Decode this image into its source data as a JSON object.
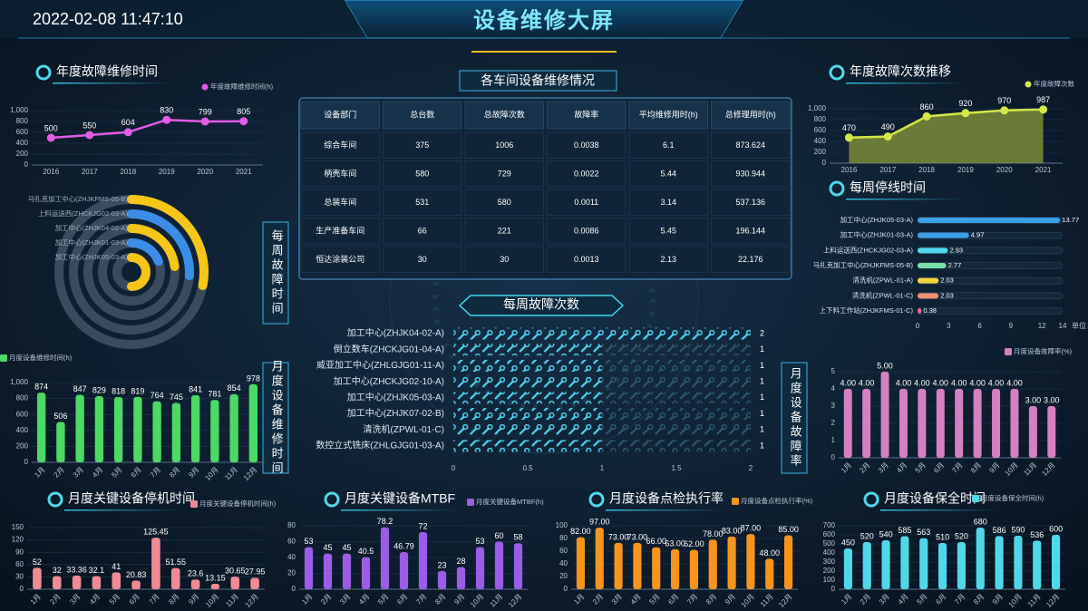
{
  "header": {
    "datetime": "2022-02-08 11:47:10",
    "title": "设备维修大屏"
  },
  "table": {
    "title": "各车间设备维修情况",
    "columns": [
      "设备部门",
      "总台数",
      "总故障次数",
      "故障率",
      "平均维修用时(h)",
      "总修理用时(h)"
    ],
    "rows": [
      [
        "综合车间",
        375,
        1006,
        0.0038,
        6.1,
        873.624
      ],
      [
        "柄壳车间",
        580,
        729,
        0.0022,
        5.44,
        930.944
      ],
      [
        "总装车间",
        531,
        580,
        0.0011,
        3.14,
        537.136
      ],
      [
        "生产准备车间",
        66,
        221,
        0.0086,
        5.45,
        196.144
      ],
      [
        "恒达涂装公司",
        30,
        30,
        0.0013,
        2.13,
        22.176
      ]
    ]
  },
  "chart_data": [
    {
      "type": "line",
      "title": "年度故障维修时间",
      "categories": [
        "2016",
        "2017",
        "2018",
        "2019",
        "2020",
        "2021"
      ],
      "series": [
        {
          "name": "年度故障维修时间(h)",
          "color": "#e45be8",
          "values": [
            500,
            550,
            604,
            830,
            799,
            805
          ]
        }
      ],
      "ylim": [
        0,
        1000
      ],
      "yticks": [
        0,
        200,
        400,
        600,
        800,
        {
          "value": 1000,
          "label": "1,000"
        }
      ]
    },
    {
      "type": "area",
      "title": "年度故障次数推移",
      "categories": [
        "2016",
        "2017",
        "2018",
        "2019",
        "2020",
        "2021"
      ],
      "series": [
        {
          "name": "年度故障次数",
          "color": "#d4e84a",
          "values": [
            470,
            490,
            860,
            920,
            970,
            987
          ]
        }
      ],
      "ylim": [
        0,
        1000
      ],
      "yticks": [
        0,
        200,
        400,
        600,
        800,
        {
          "value": 1000,
          "label": "1,000"
        }
      ]
    },
    {
      "type": "hbar",
      "title": "每周停线时间",
      "categories": [
        "加工中心(ZHJK05-03-A)",
        "加工中心(ZHJK01-03-A)",
        "上料运送西(ZHCKJG02-03-A)",
        "马扎克加工中心(ZHJKFMS-05-B)",
        "清洗机(ZPWL-01-A)",
        "清洗机(ZPWL-01-C)",
        "上下料工作站(ZHJKFMS-01-C)"
      ],
      "values": [
        13.77,
        4.97,
        2.93,
        2.77,
        2.03,
        2.03,
        0.38
      ],
      "colors": [
        "#3aa0e8",
        "#3aa0e8",
        "#4fd8ea",
        "#7be0a8",
        "#f5d33f",
        "#f09070",
        "#f06a9a"
      ],
      "xlim": [
        0,
        14
      ],
      "xticks": [
        0,
        3,
        6,
        9,
        12,
        14
      ],
      "unit_label": "单位"
    },
    {
      "type": "polar",
      "title": "每周故障时间",
      "categories": [
        "马扎克加工中心(ZHJKFMS-05-B)",
        "上料运送西(ZHCKJG02-03-A)",
        "加工中心(ZHJK04-02-A)",
        "加工中心(ZHJK01-03-A)",
        "加工中心(ZHJK05-03-A)"
      ],
      "values": [
        2.8,
        2.6,
        2.3,
        1.9,
        5
      ],
      "colors": [
        "#f5c518",
        "#3a8ee6",
        "#f5c518",
        "#3a8ee6",
        "#f5c518"
      ],
      "rlim": [
        0,
        10
      ]
    },
    {
      "type": "bar",
      "title": "月度设备维修时间",
      "categories": [
        "1月",
        "2月",
        "3月",
        "4月",
        "5月",
        "6月",
        "7月",
        "8月",
        "9月",
        "10月",
        "11月",
        "12月"
      ],
      "series": [
        {
          "name": "月度设备维修时间(h)",
          "color": "#4cd964",
          "values": [
            874,
            506,
            847,
            829,
            818,
            819,
            764,
            745,
            841,
            781,
            854,
            978
          ]
        }
      ],
      "ylim": [
        0,
        1000
      ],
      "yticks": [
        0,
        200,
        400,
        600,
        800,
        {
          "value": 1000,
          "label": "1,000"
        }
      ]
    },
    {
      "type": "pictorial",
      "title": "每周故障次数",
      "categories": [
        "加工中心(ZHJK04-02-A)",
        "倒立数车(ZHCKJG01-04-A)",
        "威亚加工中心(ZHLGJG01-11-A)",
        "加工中心(ZHCKJG02-10-A)",
        "加工中心(ZHJK05-03-A)",
        "加工中心(ZHJK07-02-B)",
        "清洗机(ZPWL-01-C)",
        "数控立式铣床(ZHLGJG01-03-A)"
      ],
      "values": [
        2,
        1,
        1,
        1,
        1,
        1,
        1,
        1
      ],
      "color": "#4dd2f0",
      "xlim": [
        0,
        2
      ],
      "xticks": [
        0,
        0.5,
        1,
        1.5,
        2
      ]
    },
    {
      "type": "bar",
      "title": "月度设备故障率",
      "categories": [
        "1月",
        "2月",
        "3月",
        "4月",
        "5月",
        "6月",
        "7月",
        "8月",
        "9月",
        "10月",
        "11月",
        "12月"
      ],
      "series": [
        {
          "name": "月度设备故障率(%)",
          "color": "#d77fc3",
          "values": [
            4,
            4,
            5,
            4,
            4,
            4,
            4,
            4,
            4,
            4,
            3,
            3
          ],
          "value_labels": [
            "4.00",
            "4.00",
            "5.00",
            "4.00",
            "4.00",
            "4.00",
            "4.00",
            "4.00",
            "4.00",
            "4.00",
            "3.00",
            "3.00"
          ]
        }
      ],
      "ylim": [
        0,
        5
      ],
      "yticks": [
        0,
        1,
        2,
        3,
        4,
        5
      ]
    },
    {
      "type": "bar",
      "title": "月度关键设备停机时间",
      "categories": [
        "1月",
        "2月",
        "3月",
        "4月",
        "5月",
        "6月",
        "7月",
        "8月",
        "9月",
        "10月",
        "11月",
        "12月"
      ],
      "series": [
        {
          "name": "月度关键设备停机时间(h)",
          "color": "#f08a94",
          "values": [
            52,
            32,
            33.36,
            32.1,
            41,
            20.83,
            125.45,
            51.55,
            23.6,
            13.15,
            30.65,
            27.95
          ]
        }
      ],
      "ylim": [
        0,
        150
      ],
      "yticks": [
        0,
        30,
        60,
        90,
        120,
        150
      ]
    },
    {
      "type": "bar",
      "title": "月度关键设备MTBF",
      "categories": [
        "1月",
        "2月",
        "3月",
        "4月",
        "5月",
        "6月",
        "7月",
        "8月",
        "9月",
        "10月",
        "11月",
        "12月"
      ],
      "series": [
        {
          "name": "月度关键设备MTBF(h)",
          "color": "#9b5de5",
          "values": [
            53,
            45,
            45,
            40.5,
            78.2,
            46.79,
            72,
            23,
            28,
            53,
            60,
            58
          ]
        }
      ],
      "ylim": [
        0,
        80
      ],
      "yticks": [
        0,
        20,
        40,
        60,
        80
      ]
    },
    {
      "type": "bar",
      "title": "月度设备点检执行率",
      "categories": [
        "1月",
        "2月",
        "3月",
        "4月",
        "5月",
        "6月",
        "7月",
        "8月",
        "9月",
        "10月",
        "11月",
        "12月"
      ],
      "series": [
        {
          "name": "月度设备点检执行率(%)",
          "color": "#f7941d",
          "values": [
            82,
            97,
            73,
            73,
            66,
            63,
            62,
            78,
            83,
            87,
            48,
            85
          ],
          "value_labels": [
            "82.00",
            "97.00",
            "73.00",
            "73.00",
            "66.00",
            "63.00",
            "62.00",
            "78.00",
            "83.00",
            "87.00",
            "48.00",
            "85.00"
          ]
        }
      ],
      "ylim": [
        0,
        100
      ],
      "yticks": [
        0,
        20,
        40,
        60,
        80,
        100
      ]
    },
    {
      "type": "bar",
      "title": "月度设备保全时间",
      "categories": [
        "1月",
        "2月",
        "3月",
        "4月",
        "5月",
        "6月",
        "7月",
        "8月",
        "9月",
        "10月",
        "11月",
        "12月"
      ],
      "series": [
        {
          "name": "月度设备保全时间(h)",
          "color": "#4fd8ea",
          "values": [
            450,
            520,
            540,
            585,
            563,
            510,
            520,
            680,
            586,
            590,
            536,
            600
          ]
        }
      ],
      "ylim": [
        0,
        700
      ],
      "yticks": [
        0,
        100,
        200,
        300,
        400,
        500,
        600,
        700
      ]
    }
  ]
}
